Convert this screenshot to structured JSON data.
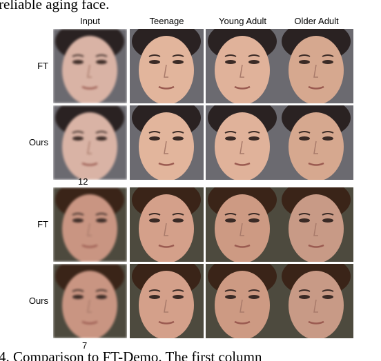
{
  "header": {
    "top_text": "reliable aging face."
  },
  "columns": [
    "Input",
    "Teenage",
    "Young Adult",
    "Older Adult"
  ],
  "blocks": [
    {
      "rows": [
        "FT",
        "Ours"
      ],
      "subject_id": "12"
    },
    {
      "rows": [
        "FT",
        "Ours"
      ],
      "subject_id": "7"
    }
  ],
  "caption": "4. Comparison to FT-Demo. The first column"
}
